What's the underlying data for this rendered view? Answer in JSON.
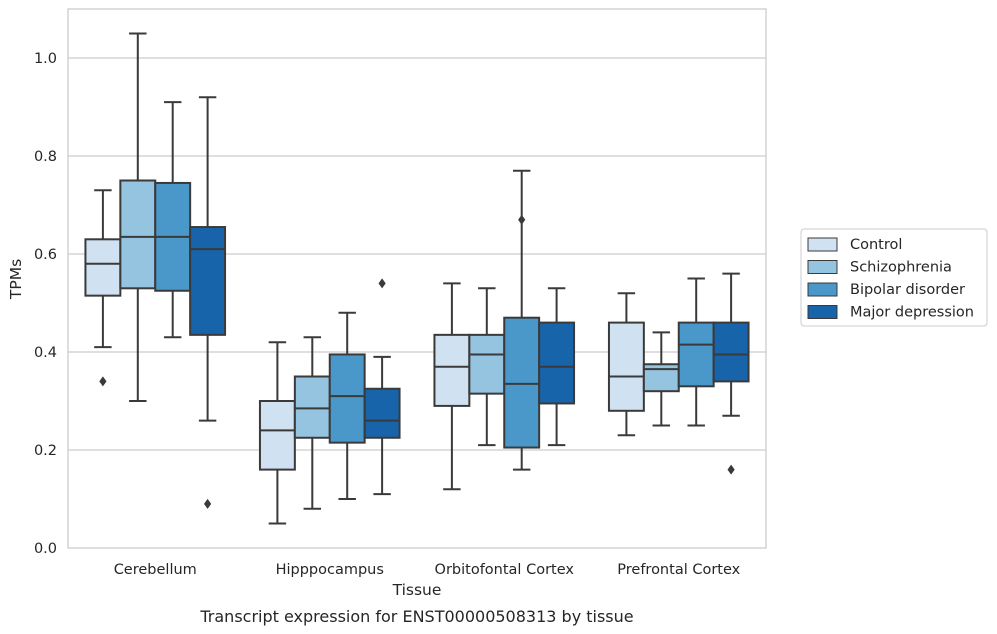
{
  "chart_data": {
    "type": "box",
    "caption": "Transcript expression for ENST00000508313 by tissue",
    "xlabel": "Tissue",
    "ylabel": "TPMs",
    "ylim": [
      0,
      1.1
    ],
    "yticks": [
      0.0,
      0.2,
      0.4,
      0.6,
      0.8,
      1.0
    ],
    "ytick_labels": [
      "0.0",
      "0.2",
      "0.4",
      "0.6",
      "0.8",
      "1.0"
    ],
    "grid": "horizontal",
    "legend_position": "right",
    "categories": [
      "Cerebellum",
      "Hipppocampus",
      "Orbitofontal Cortex",
      "Prefrontal Cortex"
    ],
    "series": [
      {
        "name": "Control",
        "color": "#d0e1f2",
        "boxes": [
          {
            "whislo": 0.41,
            "q1": 0.515,
            "med": 0.58,
            "q3": 0.63,
            "whishi": 0.73,
            "fliers": [
              0.34
            ]
          },
          {
            "whislo": 0.05,
            "q1": 0.16,
            "med": 0.24,
            "q3": 0.3,
            "whishi": 0.42,
            "fliers": []
          },
          {
            "whislo": 0.12,
            "q1": 0.29,
            "med": 0.37,
            "q3": 0.435,
            "whishi": 0.54,
            "fliers": []
          },
          {
            "whislo": 0.23,
            "q1": 0.28,
            "med": 0.35,
            "q3": 0.46,
            "whishi": 0.52,
            "fliers": []
          }
        ]
      },
      {
        "name": "Schizophrenia",
        "color": "#94c4df",
        "boxes": [
          {
            "whislo": 0.3,
            "q1": 0.53,
            "med": 0.635,
            "q3": 0.75,
            "whishi": 1.05,
            "fliers": []
          },
          {
            "whislo": 0.08,
            "q1": 0.225,
            "med": 0.285,
            "q3": 0.35,
            "whishi": 0.43,
            "fliers": []
          },
          {
            "whislo": 0.21,
            "q1": 0.315,
            "med": 0.395,
            "q3": 0.435,
            "whishi": 0.53,
            "fliers": []
          },
          {
            "whislo": 0.25,
            "q1": 0.32,
            "med": 0.365,
            "q3": 0.375,
            "whishi": 0.44,
            "fliers": []
          }
        ]
      },
      {
        "name": "Bipolar disorder",
        "color": "#4a98c9",
        "boxes": [
          {
            "whislo": 0.43,
            "q1": 0.525,
            "med": 0.635,
            "q3": 0.745,
            "whishi": 0.91,
            "fliers": []
          },
          {
            "whislo": 0.1,
            "q1": 0.215,
            "med": 0.31,
            "q3": 0.395,
            "whishi": 0.48,
            "fliers": []
          },
          {
            "whislo": 0.16,
            "q1": 0.205,
            "med": 0.335,
            "q3": 0.47,
            "whishi": 0.77,
            "fliers": [
              0.67
            ]
          },
          {
            "whislo": 0.25,
            "q1": 0.33,
            "med": 0.415,
            "q3": 0.46,
            "whishi": 0.55,
            "fliers": []
          }
        ]
      },
      {
        "name": "Major depression",
        "color": "#1764ab",
        "boxes": [
          {
            "whislo": 0.26,
            "q1": 0.435,
            "med": 0.61,
            "q3": 0.655,
            "whishi": 0.92,
            "fliers": [
              0.09
            ]
          },
          {
            "whislo": 0.11,
            "q1": 0.225,
            "med": 0.26,
            "q3": 0.325,
            "whishi": 0.39,
            "fliers": [
              0.54
            ]
          },
          {
            "whislo": 0.21,
            "q1": 0.295,
            "med": 0.37,
            "q3": 0.46,
            "whishi": 0.53,
            "fliers": []
          },
          {
            "whislo": 0.27,
            "q1": 0.34,
            "med": 0.395,
            "q3": 0.46,
            "whishi": 0.56,
            "fliers": [
              0.16
            ]
          }
        ]
      }
    ]
  }
}
